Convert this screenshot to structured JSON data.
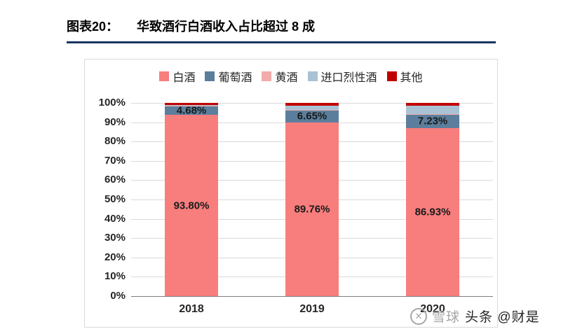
{
  "header": {
    "label": "图表20：",
    "title": "华致酒行白酒收入占比超过 8 成"
  },
  "watermark": {
    "xueqiu": "雪球",
    "toutiao": "头条 @财是"
  },
  "chart_data": {
    "type": "bar",
    "stacked": true,
    "title": "华致酒行白酒收入占比超过 8 成",
    "categories": [
      "2018",
      "2019",
      "2020"
    ],
    "series": [
      {
        "name": "白酒",
        "color": "#F87D7D",
        "values": [
          93.8,
          89.76,
          86.93
        ],
        "labels": [
          "93.80%",
          "89.76%",
          "86.93%"
        ]
      },
      {
        "name": "葡萄酒",
        "color": "#5B7E9C",
        "values": [
          4.68,
          6.65,
          7.23
        ],
        "labels": [
          "4.68%",
          "6.65%",
          "7.23%"
        ]
      },
      {
        "name": "黄酒",
        "color": "#F2ABAB",
        "values": [
          0.12,
          0.15,
          0.2
        ],
        "labels": null
      },
      {
        "name": "进口烈性酒",
        "color": "#A9C2D4",
        "values": [
          0.4,
          2.14,
          4.14
        ],
        "labels": null
      },
      {
        "name": "其他",
        "color": "#C00000",
        "values": [
          1.0,
          1.3,
          1.5
        ],
        "labels": null
      }
    ],
    "xlabel": "",
    "ylabel": "",
    "ylim": [
      0,
      100
    ],
    "yticks": [
      "0%",
      "10%",
      "20%",
      "30%",
      "40%",
      "50%",
      "60%",
      "70%",
      "80%",
      "90%",
      "100%"
    ],
    "grid": true,
    "legend_position": "top"
  }
}
